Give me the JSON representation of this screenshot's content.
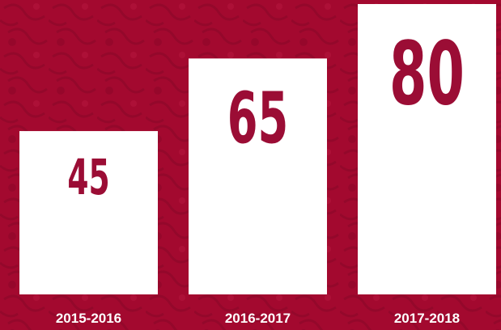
{
  "chart_data": {
    "type": "bar",
    "categories": [
      "2015-2016",
      "2016-2017",
      "2017-2018"
    ],
    "values": [
      45,
      65,
      80
    ],
    "color": "#ffffff"
  }
}
